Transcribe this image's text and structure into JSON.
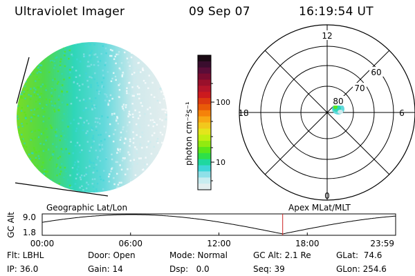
{
  "header": {
    "title": "Ultraviolet Imager",
    "date": "09 Sep 07",
    "time": "16:19:54 UT"
  },
  "colorbar": {
    "unit_label": "photon cm⁻²s⁻¹",
    "ticks": [
      "100",
      "10"
    ],
    "colors": [
      "#1a0a14",
      "#3a0d2e",
      "#5a0d38",
      "#7a0c30",
      "#99102b",
      "#b5152a",
      "#cc1a1e",
      "#dc3a10",
      "#e95a08",
      "#f5820a",
      "#f8a814",
      "#f2c81d",
      "#e4e51c",
      "#c2ef12",
      "#92ea10",
      "#5ae61a",
      "#2ee048",
      "#1ed8a0",
      "#3ed6d8",
      "#8fe0e8",
      "#c8ecf0",
      "#e2eeef"
    ]
  },
  "polar_plot": {
    "lat_labels": [
      "60",
      "70",
      "80"
    ],
    "mlt_labels": [
      "12",
      "18",
      "6",
      "0"
    ]
  },
  "timeline": {
    "ylabel": "GC Alt",
    "y_ticks": [
      "9.0",
      "1.8"
    ],
    "left_title": "Geographic Lat/Lon",
    "right_title": "Apex MLat/MLT",
    "x_ticks": [
      "00:00",
      "06:00",
      "12:00",
      "18:00",
      "23:59"
    ],
    "marker_time_hours": 16.33,
    "marker_color": "#cc2222"
  },
  "info": {
    "row1": [
      "Flt: LBHL",
      "Door: Open",
      "Mode: Normal",
      "GC Alt: 2.1 Re",
      "GLat:  74.6"
    ],
    "row2": [
      "IP: 36.0",
      "Gain: 14",
      "Dsp:   0.0",
      "Seq: 39",
      "GLon: 254.6"
    ]
  }
}
